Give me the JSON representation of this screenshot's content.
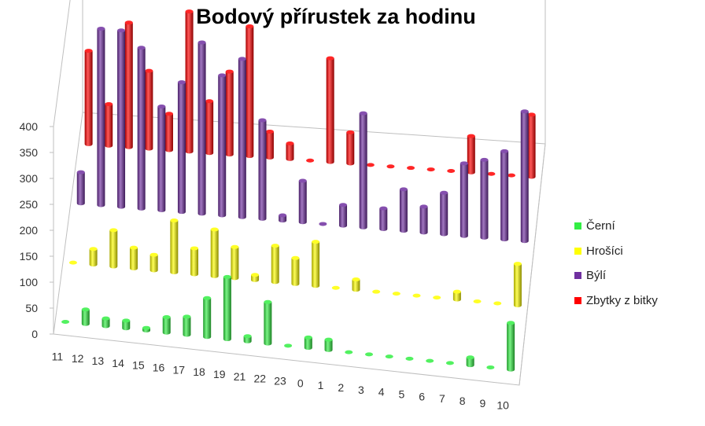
{
  "chart_data": {
    "type": "bar",
    "subtype": "3d-clustered-columns",
    "title": "Bodový přírustek za hodinu",
    "categories": [
      "11",
      "12",
      "13",
      "14",
      "15",
      "16",
      "17",
      "18",
      "19",
      "21",
      "22",
      "23",
      "0",
      "1",
      "2",
      "3",
      "4",
      "5",
      "6",
      "7",
      "8",
      "9",
      "10"
    ],
    "ylim": [
      0,
      400
    ],
    "yticks": [
      0,
      50,
      100,
      150,
      200,
      250,
      300,
      350,
      400
    ],
    "grid": false,
    "legend_position": "right",
    "series": [
      {
        "name": "Černí",
        "color": "#33ee44",
        "values": [
          0,
          28,
          15,
          15,
          5,
          30,
          35,
          75,
          120,
          10,
          80,
          0,
          20,
          20,
          0,
          0,
          0,
          0,
          0,
          0,
          15,
          0,
          90
        ]
      },
      {
        "name": "Hrošíci",
        "color": "#ffff00",
        "values": [
          0,
          30,
          70,
          40,
          30,
          100,
          50,
          90,
          60,
          10,
          70,
          50,
          85,
          0,
          20,
          0,
          0,
          0,
          0,
          15,
          0,
          0,
          80
        ]
      },
      {
        "name": "Býlí",
        "color": "#7030a0",
        "values": [
          60,
          340,
          340,
          310,
          200,
          250,
          330,
          270,
          305,
          190,
          10,
          80,
          0,
          40,
          220,
          40,
          80,
          50,
          80,
          140,
          150,
          170,
          250
        ]
      },
      {
        "name": "Zbytky z bitky",
        "color": "#ff0000",
        "values": [
          180,
          80,
          240,
          150,
          70,
          270,
          100,
          160,
          250,
          50,
          30,
          0,
          200,
          60,
          0,
          0,
          0,
          0,
          0,
          70,
          0,
          0,
          120
        ]
      }
    ]
  }
}
